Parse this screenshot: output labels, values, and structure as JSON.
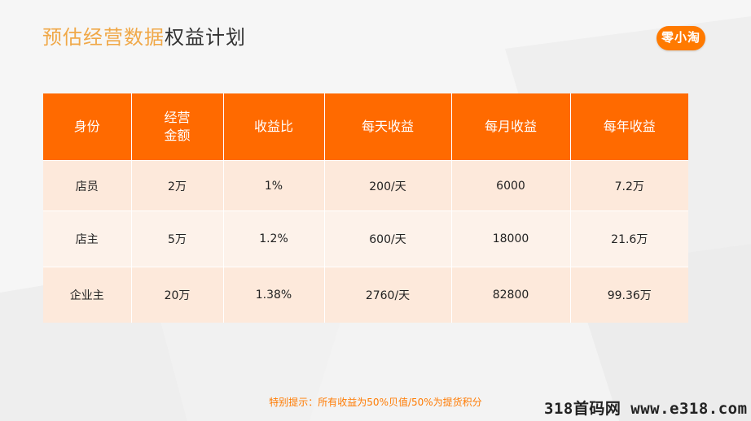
{
  "title": {
    "highlight": "预估经营数据",
    "rest": "权益计划"
  },
  "logo": {
    "text": "零小淘"
  },
  "table": {
    "headers": [
      "身份",
      "经营\n金额",
      "收益比",
      "每天收益",
      "每月收益",
      "每年收益"
    ],
    "rows": [
      [
        "店员",
        "2万",
        "1%",
        "200/天",
        "6000",
        "7.2万"
      ],
      [
        "店主",
        "5万",
        "1.2%",
        "600/天",
        "18000",
        "21.6万"
      ],
      [
        "企业主",
        "20万",
        "1.38%",
        "2760/天",
        "82800",
        "99.36万"
      ]
    ]
  },
  "note": "特别提示：所有收益为50%贝值/50%为提货积分",
  "watermark": "318首码网 www.e318.com",
  "colors": {
    "accent": "#ff6a00",
    "title_highlight": "#f0a848",
    "row_dark": "#fde9db",
    "row_light": "#fdf2ea"
  }
}
